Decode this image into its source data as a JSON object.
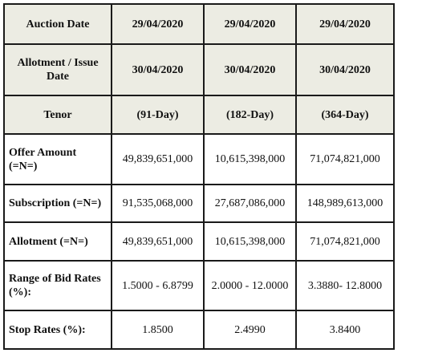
{
  "table": {
    "header_rows": [
      {
        "label": "Auction Date",
        "values": [
          "29/04/2020",
          "29/04/2020",
          "29/04/2020"
        ]
      },
      {
        "label": "Allotment / Issue Date",
        "values": [
          "30/04/2020",
          "30/04/2020",
          "30/04/2020"
        ]
      },
      {
        "label": "Tenor",
        "values": [
          "(91-Day)",
          "(182-Day)",
          "(364-Day)"
        ]
      }
    ],
    "body_rows": [
      {
        "label": "Offer Amount (=N=)",
        "values": [
          "49,839,651,000",
          "10,615,398,000",
          "71,074,821,000"
        ]
      },
      {
        "label": "Subscription (=N=)",
        "values": [
          "91,535,068,000",
          "27,687,086,000",
          "148,989,613,000"
        ]
      },
      {
        "label": "Allotment (=N=)",
        "values": [
          "49,839,651,000",
          "10,615,398,000",
          "71,074,821,000"
        ]
      },
      {
        "label": "Range of Bid Rates (%):",
        "values": [
          "1.5000 - 6.8799",
          "2.0000 - 12.0000",
          "3.3880- 12.8000"
        ]
      },
      {
        "label": "Stop Rates (%):",
        "values": [
          "1.8500",
          "2.4990",
          "3.8400"
        ]
      }
    ]
  }
}
